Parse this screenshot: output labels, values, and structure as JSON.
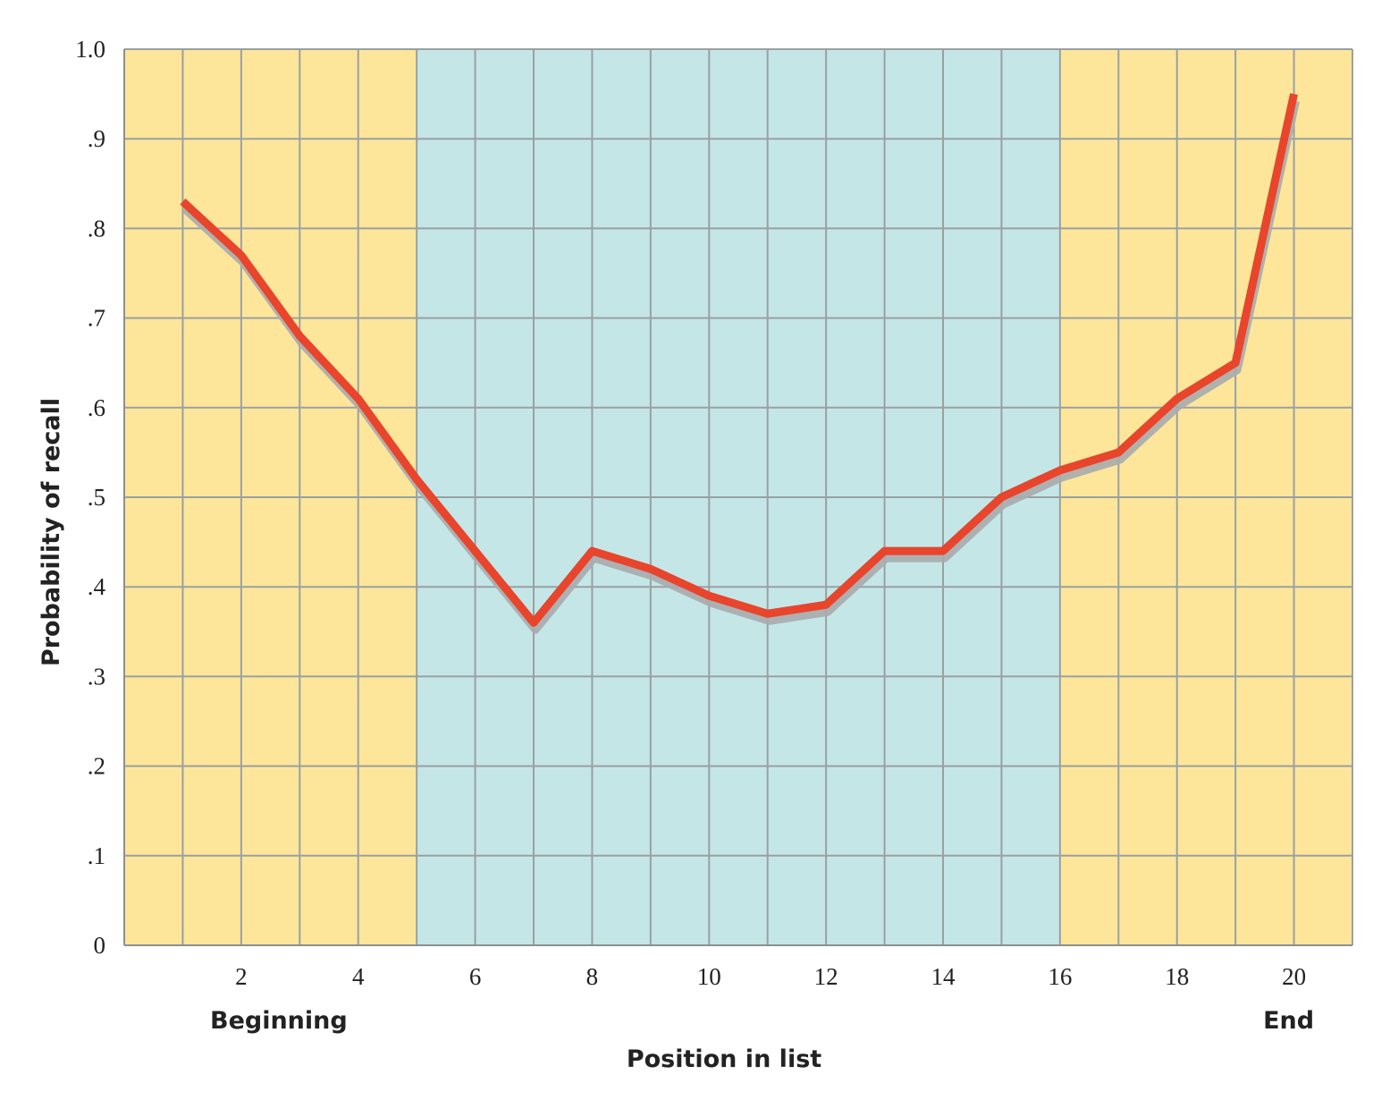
{
  "chart_data": {
    "type": "line",
    "title": "",
    "xlabel": "Position in list",
    "ylabel": "Probability of recall",
    "xlim": [
      0,
      21
    ],
    "ylim": [
      0,
      1.0
    ],
    "x_ticks": [
      2,
      4,
      6,
      8,
      10,
      12,
      14,
      16,
      18,
      20
    ],
    "x_tick_labels": [
      "2",
      "4",
      "6",
      "8",
      "10",
      "12",
      "14",
      "16",
      "18",
      "20"
    ],
    "y_ticks": [
      0,
      0.1,
      0.2,
      0.3,
      0.4,
      0.5,
      0.6,
      0.7,
      0.8,
      0.9,
      1.0
    ],
    "y_tick_labels": [
      "0",
      ".1",
      ".2",
      ".3",
      ".4",
      ".5",
      ".6",
      ".7",
      ".8",
      ".9",
      "1.0"
    ],
    "x_annotations": [
      {
        "x": 2,
        "text": "Beginning"
      },
      {
        "x": 20,
        "text": "End"
      }
    ],
    "grid": true,
    "regions": [
      {
        "x_start": 0,
        "x_end": 5,
        "color": "#fde69a"
      },
      {
        "x_start": 5,
        "x_end": 16,
        "color": "#c4e6e7"
      },
      {
        "x_start": 16,
        "x_end": 21,
        "color": "#fde69a"
      }
    ],
    "series": [
      {
        "color": "#e8452c",
        "x": [
          1,
          2,
          3,
          4,
          5,
          6,
          7,
          8,
          9,
          10,
          11,
          12,
          13,
          14,
          15,
          16,
          17,
          18,
          19,
          20
        ],
        "values": [
          0.83,
          0.77,
          0.68,
          0.61,
          0.52,
          0.44,
          0.36,
          0.44,
          0.42,
          0.39,
          0.37,
          0.38,
          0.44,
          0.44,
          0.5,
          0.53,
          0.55,
          0.61,
          0.65,
          0.95
        ]
      }
    ]
  }
}
